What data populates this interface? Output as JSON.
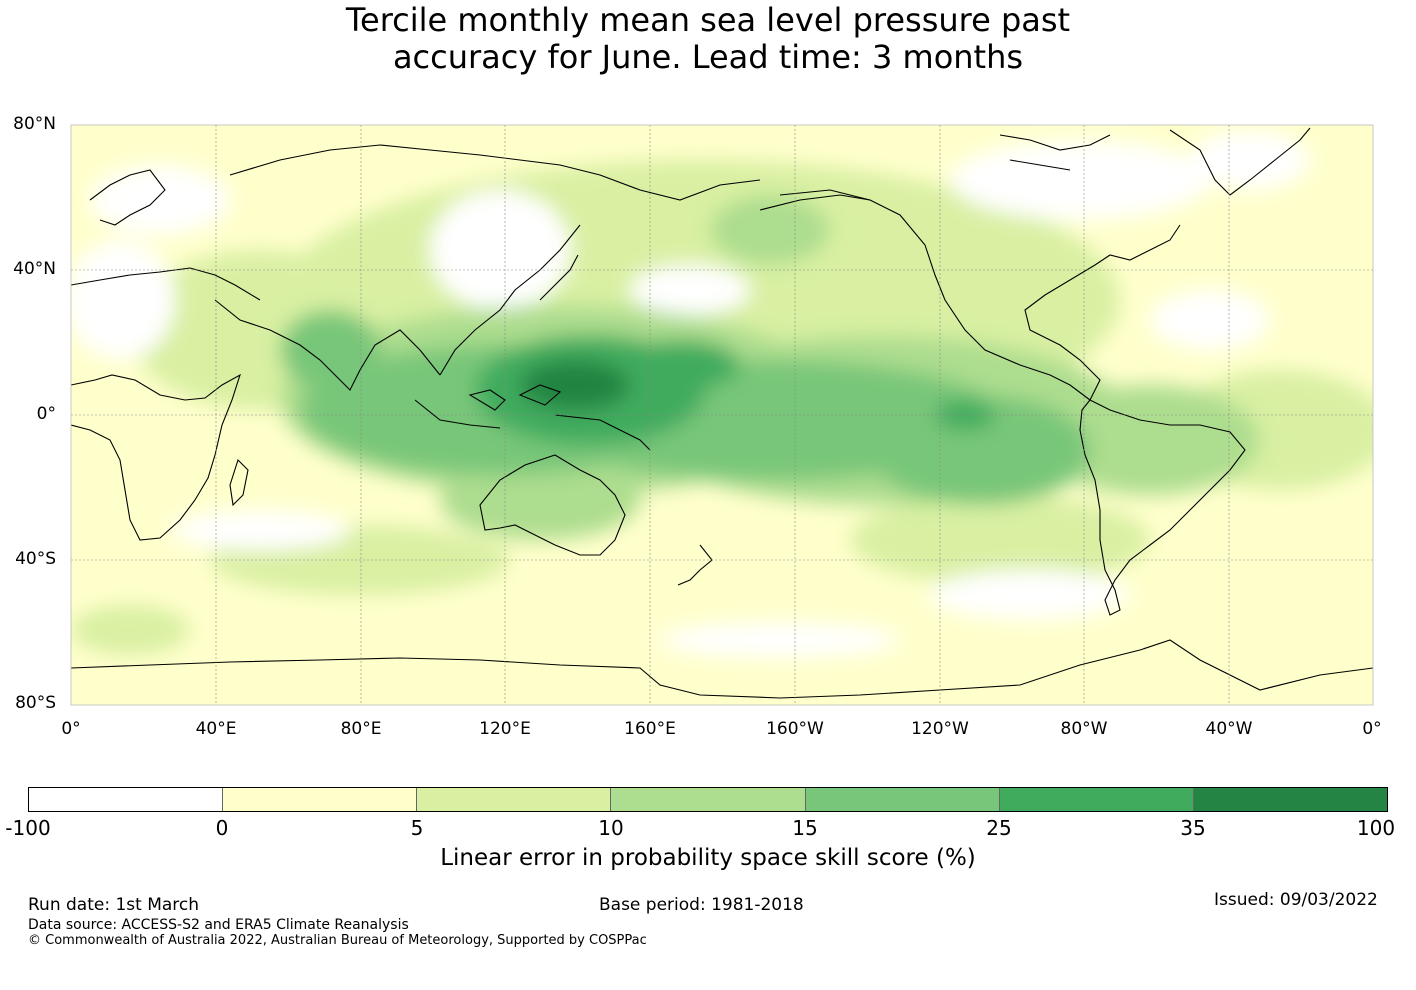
{
  "title": {
    "line1": "Tercile monthly mean sea level pressure past",
    "line2": "accuracy for June. Lead time: 3 months"
  },
  "map": {
    "projection": "equirectangular",
    "central_longitude": "180°",
    "lat_labels": [
      "80°N",
      "40°N",
      "0°",
      "40°S",
      "80°S"
    ],
    "lon_labels": [
      "0°",
      "40°E",
      "80°E",
      "120°E",
      "160°E",
      "160°W",
      "120°W",
      "80°W",
      "40°W",
      "0°"
    ],
    "ocean_land_background": "#ffffff",
    "gridlines": true
  },
  "colorbar": {
    "title": "Linear error in probability space skill score (%)",
    "ticks": [
      "-100",
      "0",
      "5",
      "10",
      "15",
      "25",
      "35",
      "100"
    ],
    "colors": [
      "#ffffff",
      "#ffffcc",
      "#d9f0a3",
      "#addd8e",
      "#78c679",
      "#41ab5d",
      "#238443"
    ]
  },
  "footer": {
    "run_date": "Run date: 1st March",
    "base_period": "Base period: 1981-2018",
    "issued": "Issued: 09/03/2022",
    "data_source": "Data source: ACCESS-S2 and ERA5 Climate Reanalysis",
    "copyright": "© Commonwealth of Australia 2022, Australian Bureau of Meteorology, Supported by COSPPac"
  }
}
